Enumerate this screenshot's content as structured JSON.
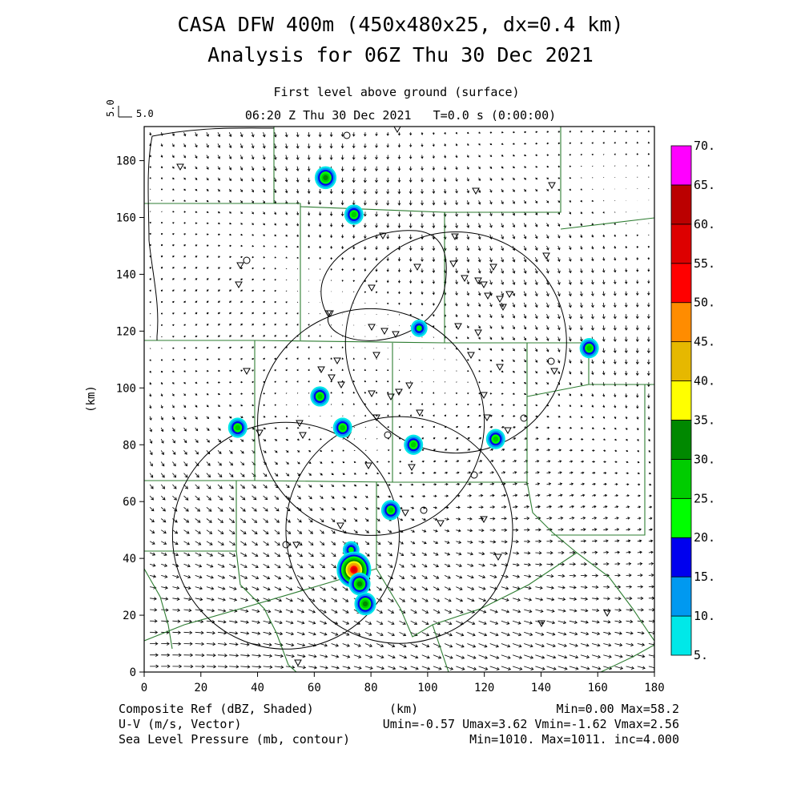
{
  "header": {
    "title_line1": "CASA DFW 400m (450x480x25, dx=0.4 km)",
    "title_line2": "Analysis for 06Z Thu 30 Dec 2021",
    "subtitle": "First level above ground (surface)",
    "time_line": "06:20 Z Thu 30 Dec 2021   T=0.0 s (0:00:00)",
    "ref_vector_label_vertical": "5.0",
    "ref_vector_label": "5.0"
  },
  "axes": {
    "xlabel": "(km)",
    "ylabel": "(km)",
    "xlim": [
      0,
      180
    ],
    "ylim": [
      0,
      192
    ],
    "xticks": [
      "0",
      "20",
      "40",
      "60",
      "80",
      "100",
      "120",
      "140",
      "160",
      "180"
    ],
    "yticks": [
      "0",
      "20",
      "40",
      "60",
      "80",
      "100",
      "120",
      "140",
      "160",
      "180"
    ]
  },
  "colorbar": {
    "labels": [
      "5.",
      "10.",
      "15.",
      "20.",
      "25.",
      "30.",
      "35.",
      "40.",
      "45.",
      "50.",
      "55.",
      "60.",
      "65.",
      "70."
    ],
    "colors": [
      "#00e8e8",
      "#0099f0",
      "#0000ee",
      "#00ff00",
      "#00cc00",
      "#008800",
      "#ffff00",
      "#e6b800",
      "#ff8c00",
      "#ff0000",
      "#dd0000",
      "#bb0000",
      "#ff00ff"
    ]
  },
  "footer": {
    "left1": "Composite Ref (dBZ, Shaded)",
    "left2": "U-V (m/s, Vector)",
    "left3": "Sea Level Pressure (mb, contour)",
    "center1": "(km)",
    "right1": "Min=0.00 Max=58.2",
    "right2": "Umin=-0.57 Umax=3.62 Vmin=-1.62 Vmax=2.56",
    "right3": "Min=1010. Max=1011. inc=4.000"
  },
  "chart_data": {
    "type": "map",
    "field": "Composite reflectivity (dBZ) with surface wind vectors and sea level pressure contours",
    "radar_range_rings_km": [
      {
        "center": [
          110,
          116
        ],
        "radius": 39
      },
      {
        "center": [
          80,
          88
        ],
        "radius": 40
      },
      {
        "center": [
          50,
          48
        ],
        "radius": 40
      },
      {
        "center": [
          90,
          50
        ],
        "radius": 40
      }
    ],
    "reflectivity_cells": [
      {
        "x": 64,
        "y": 174,
        "max_dbz": 33
      },
      {
        "x": 74,
        "y": 161,
        "max_dbz": 28
      },
      {
        "x": 97,
        "y": 121,
        "max_dbz": 20
      },
      {
        "x": 157,
        "y": 114,
        "max_dbz": 28
      },
      {
        "x": 62,
        "y": 97,
        "max_dbz": 25
      },
      {
        "x": 124,
        "y": 82,
        "max_dbz": 28
      },
      {
        "x": 95,
        "y": 80,
        "max_dbz": 25
      },
      {
        "x": 33,
        "y": 86,
        "max_dbz": 25
      },
      {
        "x": 70,
        "y": 86,
        "max_dbz": 25
      },
      {
        "x": 87,
        "y": 57,
        "max_dbz": 25
      },
      {
        "x": 73,
        "y": 43,
        "max_dbz": 20
      },
      {
        "x": 74,
        "y": 36,
        "max_dbz": 58
      },
      {
        "x": 76,
        "y": 31,
        "max_dbz": 30
      },
      {
        "x": 78,
        "y": 24,
        "max_dbz": 30
      }
    ],
    "stats": {
      "ref_min": 0.0,
      "ref_max": 58.2,
      "umin": -0.57,
      "umax": 3.62,
      "vmin": -1.62,
      "vmax": 2.56,
      "slp_min": 1010,
      "slp_max": 1011,
      "slp_inc": 4.0
    }
  }
}
